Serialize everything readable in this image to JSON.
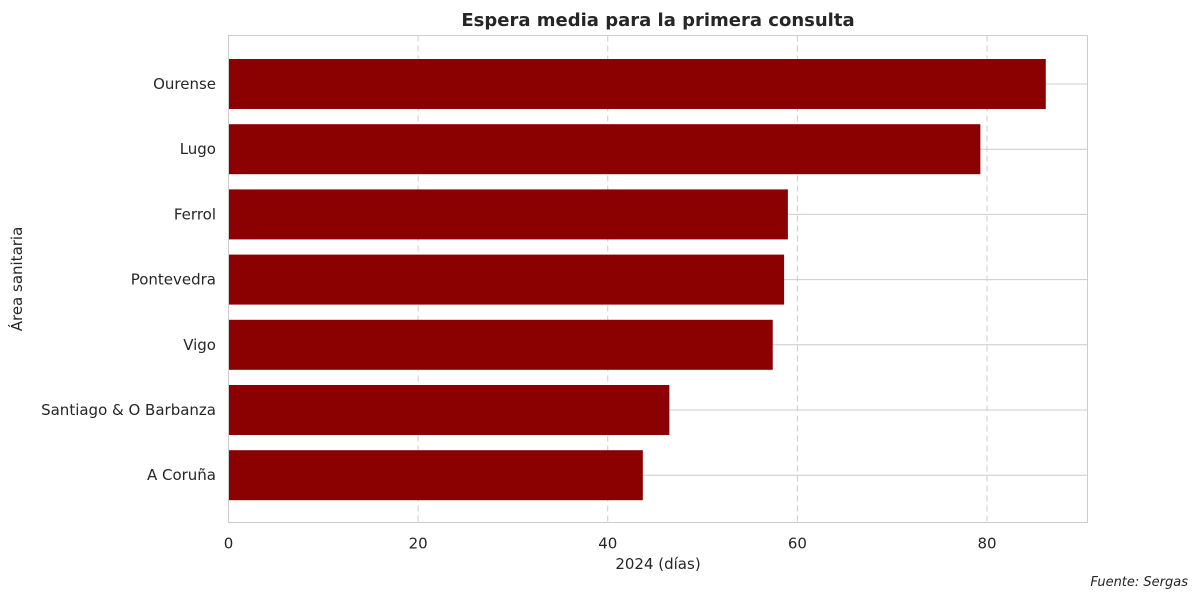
{
  "chart_data": {
    "type": "bar",
    "orientation": "horizontal",
    "title": "Espera media para la primera consulta",
    "xlabel": "2024 (días)",
    "ylabel": "Área sanitaria",
    "categories": [
      "Ourense",
      "Lugo",
      "Ferrol",
      "Pontevedra",
      "Vigo",
      "Santiago & O Barbanza",
      "A Coruña"
    ],
    "values": [
      86.2,
      79.3,
      59,
      58.6,
      57.4,
      46.5,
      43.7
    ],
    "xlim": [
      0,
      90.6
    ],
    "xticks": [
      "0",
      "20",
      "40",
      "60",
      "80"
    ],
    "bar_color": "#8b0000",
    "grid": true,
    "source": "Fuente: Sergas"
  }
}
